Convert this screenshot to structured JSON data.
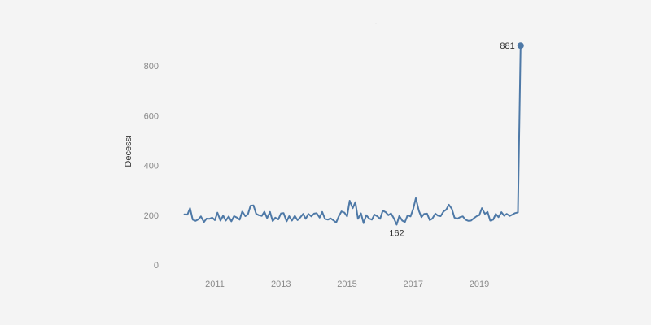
{
  "chart_data": {
    "type": "line",
    "title": "-",
    "xlabel": "",
    "ylabel": "Decessi",
    "x_tick_labels": [
      "2011",
      "2013",
      "2015",
      "2017",
      "2019"
    ],
    "y_tick_labels": [
      "0",
      "200",
      "400",
      "600",
      "800"
    ],
    "xlim": [
      2010.0,
      2020.3
    ],
    "ylim": [
      0,
      900
    ],
    "grid": false,
    "color": "#4e79a7",
    "series": [
      {
        "values": [
          {
            "x": 2010.08,
            "y": 203
          },
          {
            "x": 2010.17,
            "y": 202
          },
          {
            "x": 2010.25,
            "y": 228
          },
          {
            "x": 2010.33,
            "y": 182
          },
          {
            "x": 2010.42,
            "y": 177
          },
          {
            "x": 2010.5,
            "y": 183
          },
          {
            "x": 2010.58,
            "y": 195
          },
          {
            "x": 2010.67,
            "y": 172
          },
          {
            "x": 2010.75,
            "y": 186
          },
          {
            "x": 2010.83,
            "y": 185
          },
          {
            "x": 2010.92,
            "y": 190
          },
          {
            "x": 2011.0,
            "y": 180
          },
          {
            "x": 2011.08,
            "y": 210
          },
          {
            "x": 2011.17,
            "y": 178
          },
          {
            "x": 2011.25,
            "y": 198
          },
          {
            "x": 2011.33,
            "y": 178
          },
          {
            "x": 2011.42,
            "y": 195
          },
          {
            "x": 2011.5,
            "y": 175
          },
          {
            "x": 2011.58,
            "y": 196
          },
          {
            "x": 2011.67,
            "y": 190
          },
          {
            "x": 2011.75,
            "y": 182
          },
          {
            "x": 2011.83,
            "y": 215
          },
          {
            "x": 2011.92,
            "y": 196
          },
          {
            "x": 2012.0,
            "y": 203
          },
          {
            "x": 2012.08,
            "y": 238
          },
          {
            "x": 2012.17,
            "y": 239
          },
          {
            "x": 2012.25,
            "y": 205
          },
          {
            "x": 2012.33,
            "y": 200
          },
          {
            "x": 2012.42,
            "y": 197
          },
          {
            "x": 2012.5,
            "y": 214
          },
          {
            "x": 2012.58,
            "y": 188
          },
          {
            "x": 2012.67,
            "y": 213
          },
          {
            "x": 2012.75,
            "y": 176
          },
          {
            "x": 2012.83,
            "y": 190
          },
          {
            "x": 2012.92,
            "y": 183
          },
          {
            "x": 2013.0,
            "y": 207
          },
          {
            "x": 2013.08,
            "y": 208
          },
          {
            "x": 2013.17,
            "y": 175
          },
          {
            "x": 2013.25,
            "y": 196
          },
          {
            "x": 2013.33,
            "y": 178
          },
          {
            "x": 2013.42,
            "y": 197
          },
          {
            "x": 2013.5,
            "y": 180
          },
          {
            "x": 2013.58,
            "y": 190
          },
          {
            "x": 2013.67,
            "y": 205
          },
          {
            "x": 2013.75,
            "y": 185
          },
          {
            "x": 2013.83,
            "y": 205
          },
          {
            "x": 2013.92,
            "y": 195
          },
          {
            "x": 2014.0,
            "y": 206
          },
          {
            "x": 2014.08,
            "y": 208
          },
          {
            "x": 2014.17,
            "y": 190
          },
          {
            "x": 2014.25,
            "y": 213
          },
          {
            "x": 2014.33,
            "y": 185
          },
          {
            "x": 2014.42,
            "y": 182
          },
          {
            "x": 2014.5,
            "y": 187
          },
          {
            "x": 2014.58,
            "y": 180
          },
          {
            "x": 2014.67,
            "y": 170
          },
          {
            "x": 2014.75,
            "y": 195
          },
          {
            "x": 2014.83,
            "y": 215
          },
          {
            "x": 2014.92,
            "y": 210
          },
          {
            "x": 2015.0,
            "y": 195
          },
          {
            "x": 2015.08,
            "y": 258
          },
          {
            "x": 2015.17,
            "y": 228
          },
          {
            "x": 2015.25,
            "y": 252
          },
          {
            "x": 2015.33,
            "y": 185
          },
          {
            "x": 2015.42,
            "y": 207
          },
          {
            "x": 2015.5,
            "y": 168
          },
          {
            "x": 2015.58,
            "y": 200
          },
          {
            "x": 2015.67,
            "y": 186
          },
          {
            "x": 2015.75,
            "y": 182
          },
          {
            "x": 2015.83,
            "y": 202
          },
          {
            "x": 2015.92,
            "y": 195
          },
          {
            "x": 2016.0,
            "y": 185
          },
          {
            "x": 2016.08,
            "y": 218
          },
          {
            "x": 2016.17,
            "y": 212
          },
          {
            "x": 2016.25,
            "y": 200
          },
          {
            "x": 2016.33,
            "y": 207
          },
          {
            "x": 2016.42,
            "y": 186
          },
          {
            "x": 2016.5,
            "y": 162
          },
          {
            "x": 2016.58,
            "y": 197
          },
          {
            "x": 2016.67,
            "y": 178
          },
          {
            "x": 2016.75,
            "y": 172
          },
          {
            "x": 2016.83,
            "y": 199
          },
          {
            "x": 2016.92,
            "y": 195
          },
          {
            "x": 2017.0,
            "y": 225
          },
          {
            "x": 2017.08,
            "y": 268
          },
          {
            "x": 2017.17,
            "y": 218
          },
          {
            "x": 2017.25,
            "y": 192
          },
          {
            "x": 2017.33,
            "y": 205
          },
          {
            "x": 2017.42,
            "y": 206
          },
          {
            "x": 2017.5,
            "y": 180
          },
          {
            "x": 2017.58,
            "y": 186
          },
          {
            "x": 2017.67,
            "y": 206
          },
          {
            "x": 2017.75,
            "y": 198
          },
          {
            "x": 2017.83,
            "y": 196
          },
          {
            "x": 2017.92,
            "y": 215
          },
          {
            "x": 2018.0,
            "y": 222
          },
          {
            "x": 2018.08,
            "y": 242
          },
          {
            "x": 2018.17,
            "y": 225
          },
          {
            "x": 2018.25,
            "y": 190
          },
          {
            "x": 2018.33,
            "y": 185
          },
          {
            "x": 2018.42,
            "y": 192
          },
          {
            "x": 2018.5,
            "y": 195
          },
          {
            "x": 2018.58,
            "y": 182
          },
          {
            "x": 2018.67,
            "y": 177
          },
          {
            "x": 2018.75,
            "y": 178
          },
          {
            "x": 2018.83,
            "y": 187
          },
          {
            "x": 2018.92,
            "y": 196
          },
          {
            "x": 2019.0,
            "y": 200
          },
          {
            "x": 2019.08,
            "y": 228
          },
          {
            "x": 2019.17,
            "y": 205
          },
          {
            "x": 2019.25,
            "y": 213
          },
          {
            "x": 2019.33,
            "y": 178
          },
          {
            "x": 2019.42,
            "y": 182
          },
          {
            "x": 2019.5,
            "y": 205
          },
          {
            "x": 2019.58,
            "y": 192
          },
          {
            "x": 2019.67,
            "y": 212
          },
          {
            "x": 2019.75,
            "y": 198
          },
          {
            "x": 2019.83,
            "y": 205
          },
          {
            "x": 2019.92,
            "y": 197
          },
          {
            "x": 2020.0,
            "y": 202
          },
          {
            "x": 2020.08,
            "y": 208
          },
          {
            "x": 2020.17,
            "y": 211
          },
          {
            "x": 2020.25,
            "y": 881
          }
        ]
      }
    ],
    "annotations": [
      {
        "label": "881",
        "x": 2020.25,
        "y": 881,
        "position": "left"
      },
      {
        "label": "162",
        "x": 2016.5,
        "y": 162,
        "position": "below"
      }
    ]
  }
}
